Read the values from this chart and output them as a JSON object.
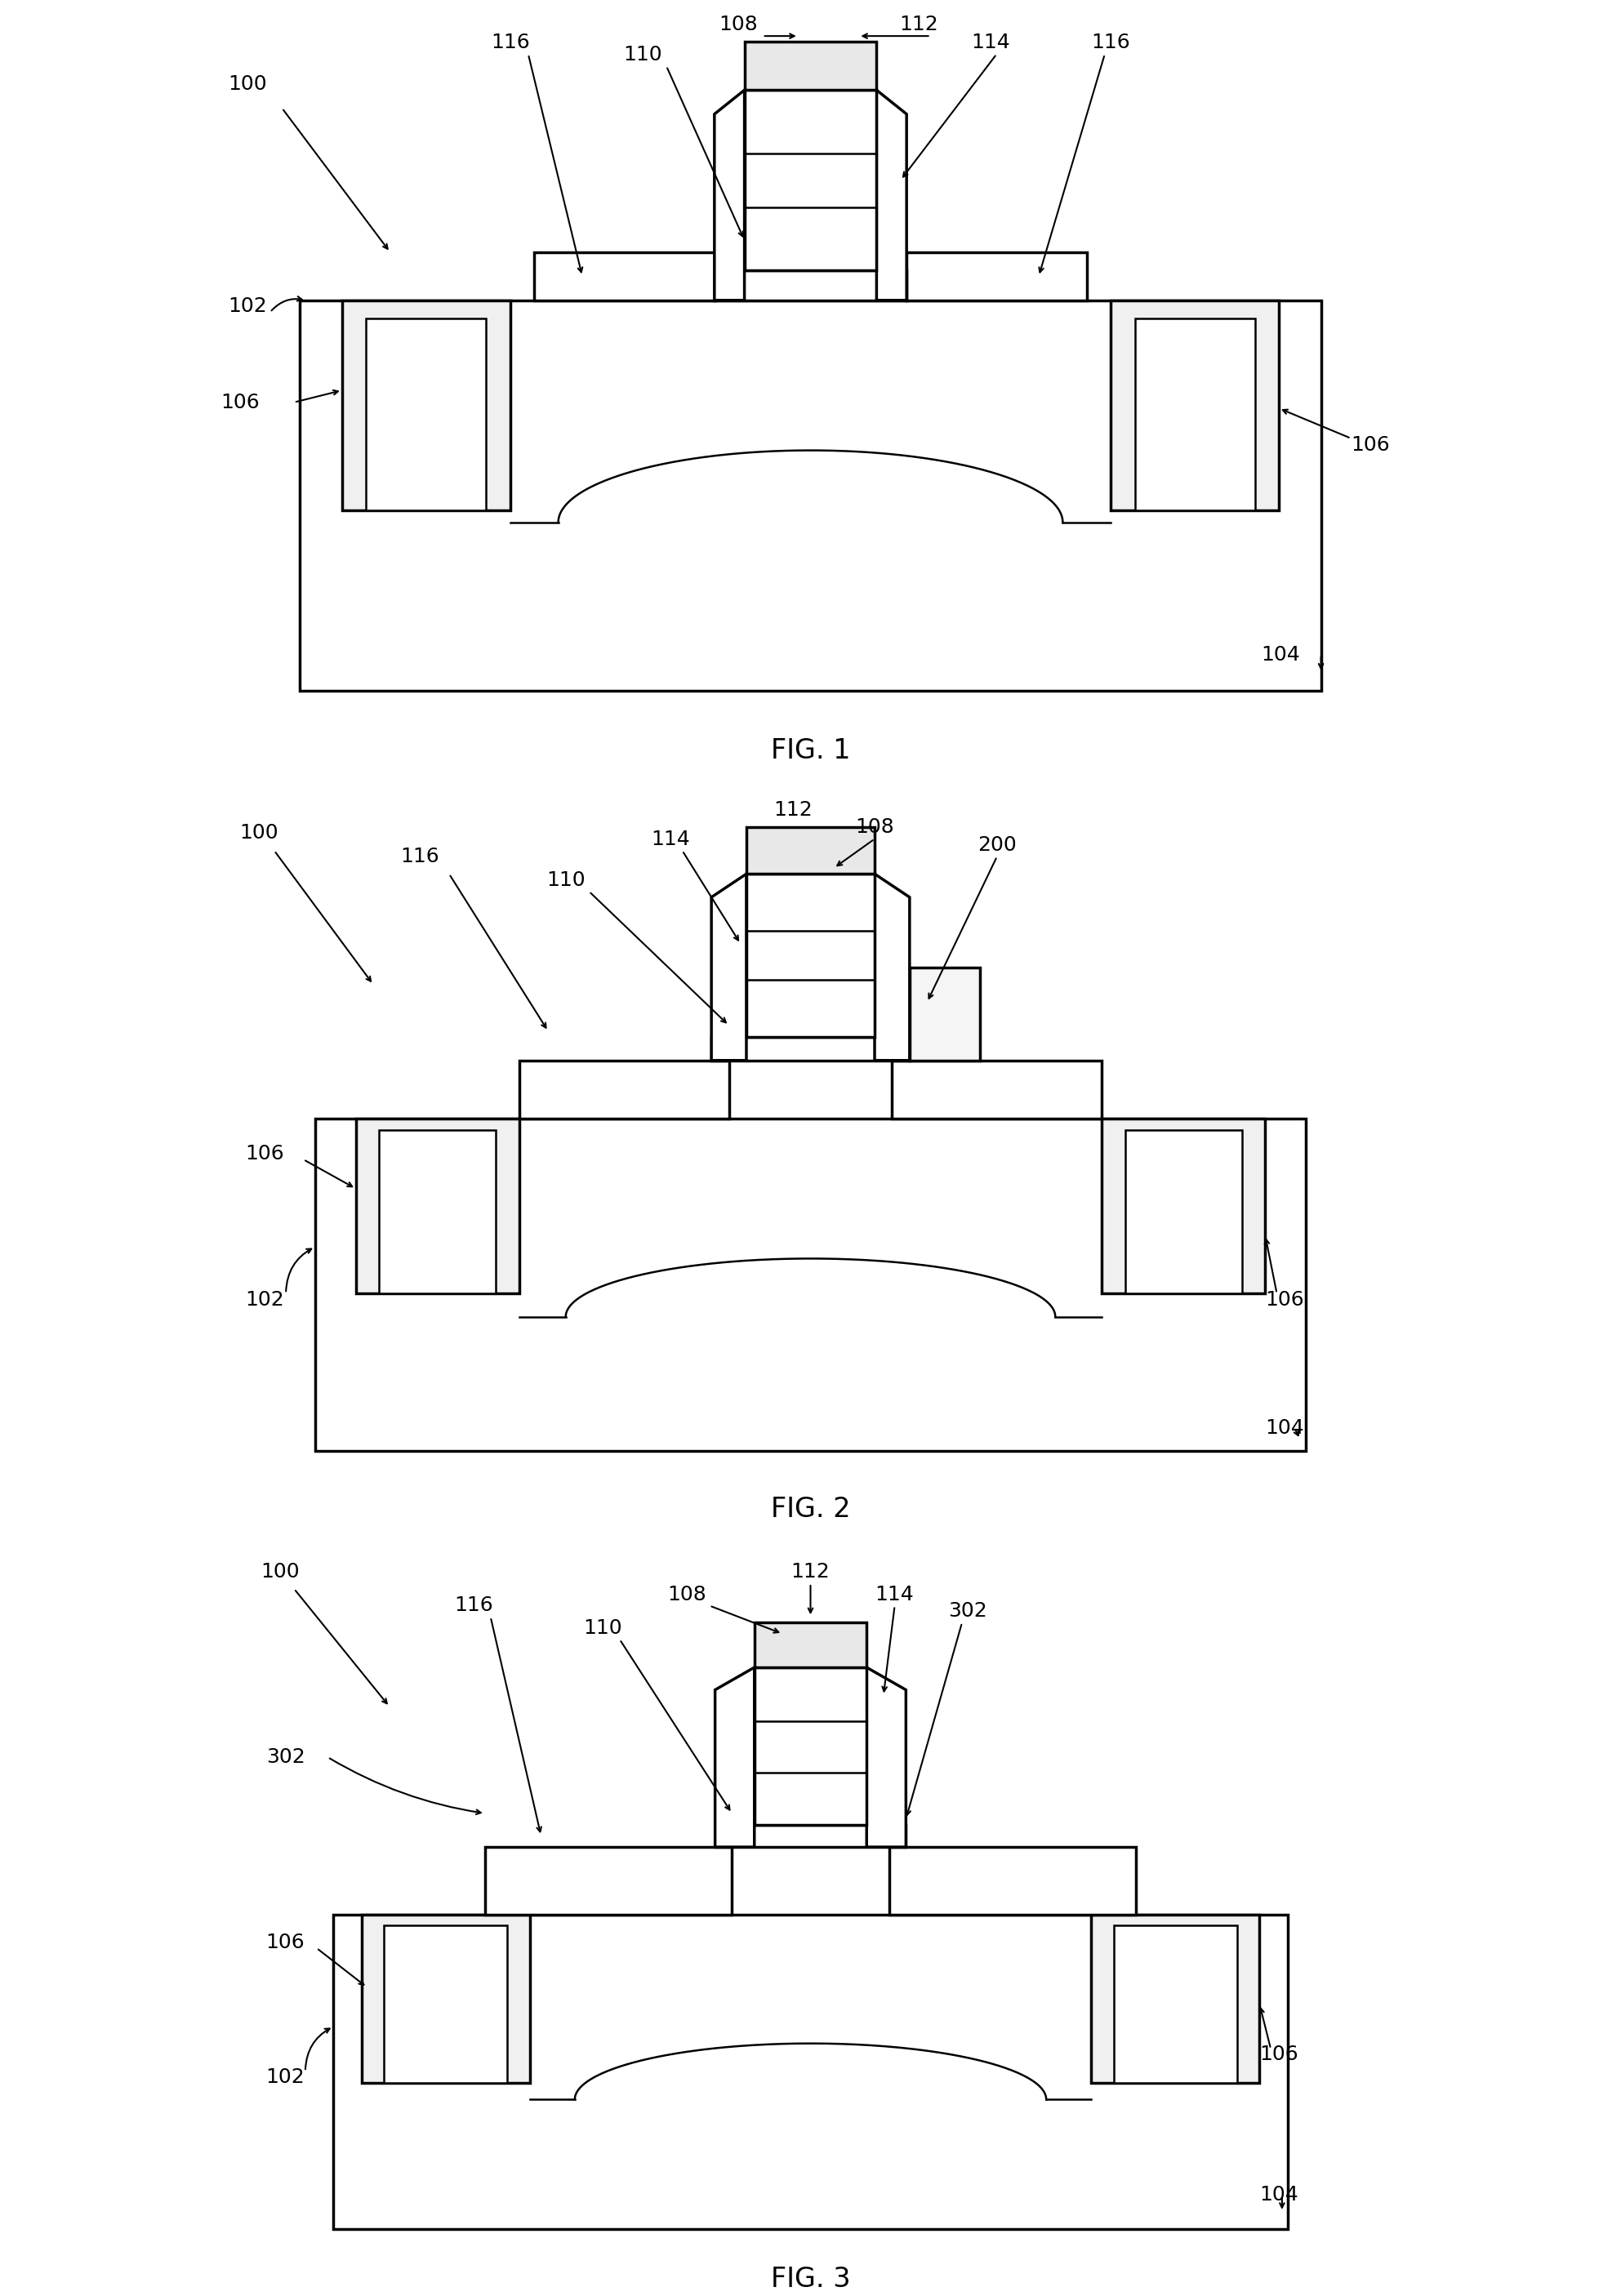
{
  "bg_color": "#ffffff",
  "line_color": "#000000",
  "lw": 2.5,
  "lw_thin": 1.8,
  "fig1_label": "FIG. 1",
  "fig2_label": "FIG. 2",
  "fig3_label": "FIG. 3"
}
